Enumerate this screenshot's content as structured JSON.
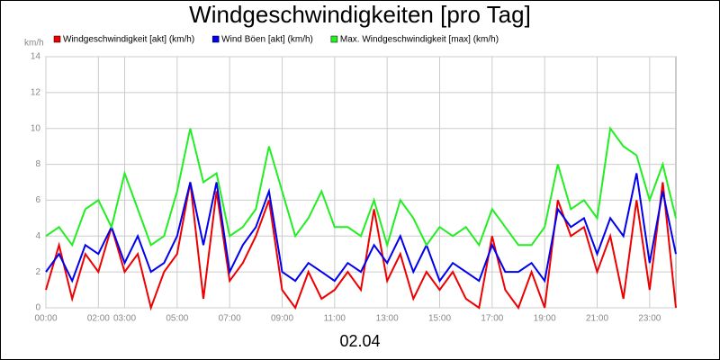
{
  "chart_data": {
    "type": "line",
    "title": "Windgeschwindigkeiten [pro Tag]",
    "y_label": "km/h",
    "x_label": "02.04",
    "x": [
      0,
      0.5,
      1,
      1.5,
      2,
      2.5,
      3,
      3.5,
      4,
      4.5,
      5,
      5.5,
      6,
      6.5,
      7,
      7.5,
      8,
      8.5,
      9,
      9.5,
      10,
      10.5,
      11,
      11.5,
      12,
      12.5,
      13,
      13.5,
      14,
      14.5,
      15,
      15.5,
      16,
      16.5,
      17,
      17.5,
      18,
      18.5,
      19,
      19.5,
      20,
      20.5,
      21,
      21.5,
      22,
      22.5,
      23,
      23.5,
      24
    ],
    "series": [
      {
        "name": "Windgeschwindigkeit [akt] (km/h)",
        "color": "#ee0000",
        "values": [
          1,
          3.5,
          0.5,
          3,
          2,
          4.5,
          2,
          3,
          0,
          2,
          3,
          7,
          0.5,
          6.5,
          1.5,
          2.5,
          4,
          6,
          1,
          0,
          2,
          0.5,
          1,
          2,
          1,
          5.5,
          1.5,
          3,
          0.5,
          2,
          1,
          2,
          0.5,
          0,
          4,
          1,
          0,
          2,
          0,
          6,
          4,
          4.5,
          2,
          4,
          0.5,
          6,
          1,
          7,
          0
        ]
      },
      {
        "name": "Wind Böen [akt] (km/h)",
        "color": "#0000ee",
        "values": [
          2,
          3,
          1.5,
          3.5,
          3,
          4.5,
          2.5,
          4,
          2,
          2.5,
          4,
          7,
          3.5,
          7,
          2,
          3.5,
          4.5,
          6.5,
          2,
          1.5,
          2.5,
          2,
          1.5,
          2.5,
          2,
          3.5,
          2.5,
          4,
          2,
          3.5,
          1.5,
          2.5,
          2,
          1.5,
          3.5,
          2,
          2,
          2.5,
          1.5,
          5.5,
          4.5,
          5,
          3,
          5,
          4,
          7.5,
          2.5,
          6.5,
          3
        ]
      },
      {
        "name": "Max. Windgeschwindigkeit [max] (km/h)",
        "color": "#22ee22",
        "values": [
          4,
          4.5,
          3.5,
          5.5,
          6,
          4.5,
          7.5,
          5.5,
          3.5,
          4,
          6.5,
          10,
          7,
          7.5,
          4,
          4.5,
          5.5,
          9,
          6.5,
          4,
          5,
          6.5,
          4.5,
          4.5,
          4,
          6,
          3.5,
          6,
          5,
          3.5,
          4.5,
          4,
          4.5,
          3.5,
          5.5,
          4.5,
          3.5,
          3.5,
          4.5,
          8,
          5.5,
          6,
          5,
          10,
          9,
          8.5,
          6,
          8,
          5
        ]
      }
    ],
    "xlim": [
      0,
      24
    ],
    "xticks": [
      {
        "value": 0,
        "label": "00:00"
      },
      {
        "value": 2,
        "label": "02:00"
      },
      {
        "value": 3,
        "label": "03:00"
      },
      {
        "value": 5,
        "label": "05:00"
      },
      {
        "value": 7,
        "label": "07:00"
      },
      {
        "value": 9,
        "label": "09:00"
      },
      {
        "value": 11,
        "label": "11:00"
      },
      {
        "value": 13,
        "label": "13:00"
      },
      {
        "value": 15,
        "label": "15:00"
      },
      {
        "value": 17,
        "label": "17:00"
      },
      {
        "value": 19,
        "label": "19:00"
      },
      {
        "value": 21,
        "label": "21:00"
      },
      {
        "value": 23,
        "label": "23:00"
      }
    ],
    "ylim": [
      0,
      14
    ],
    "yticks": [
      0,
      2,
      4,
      6,
      8,
      10,
      12,
      14
    ],
    "grid": true
  }
}
